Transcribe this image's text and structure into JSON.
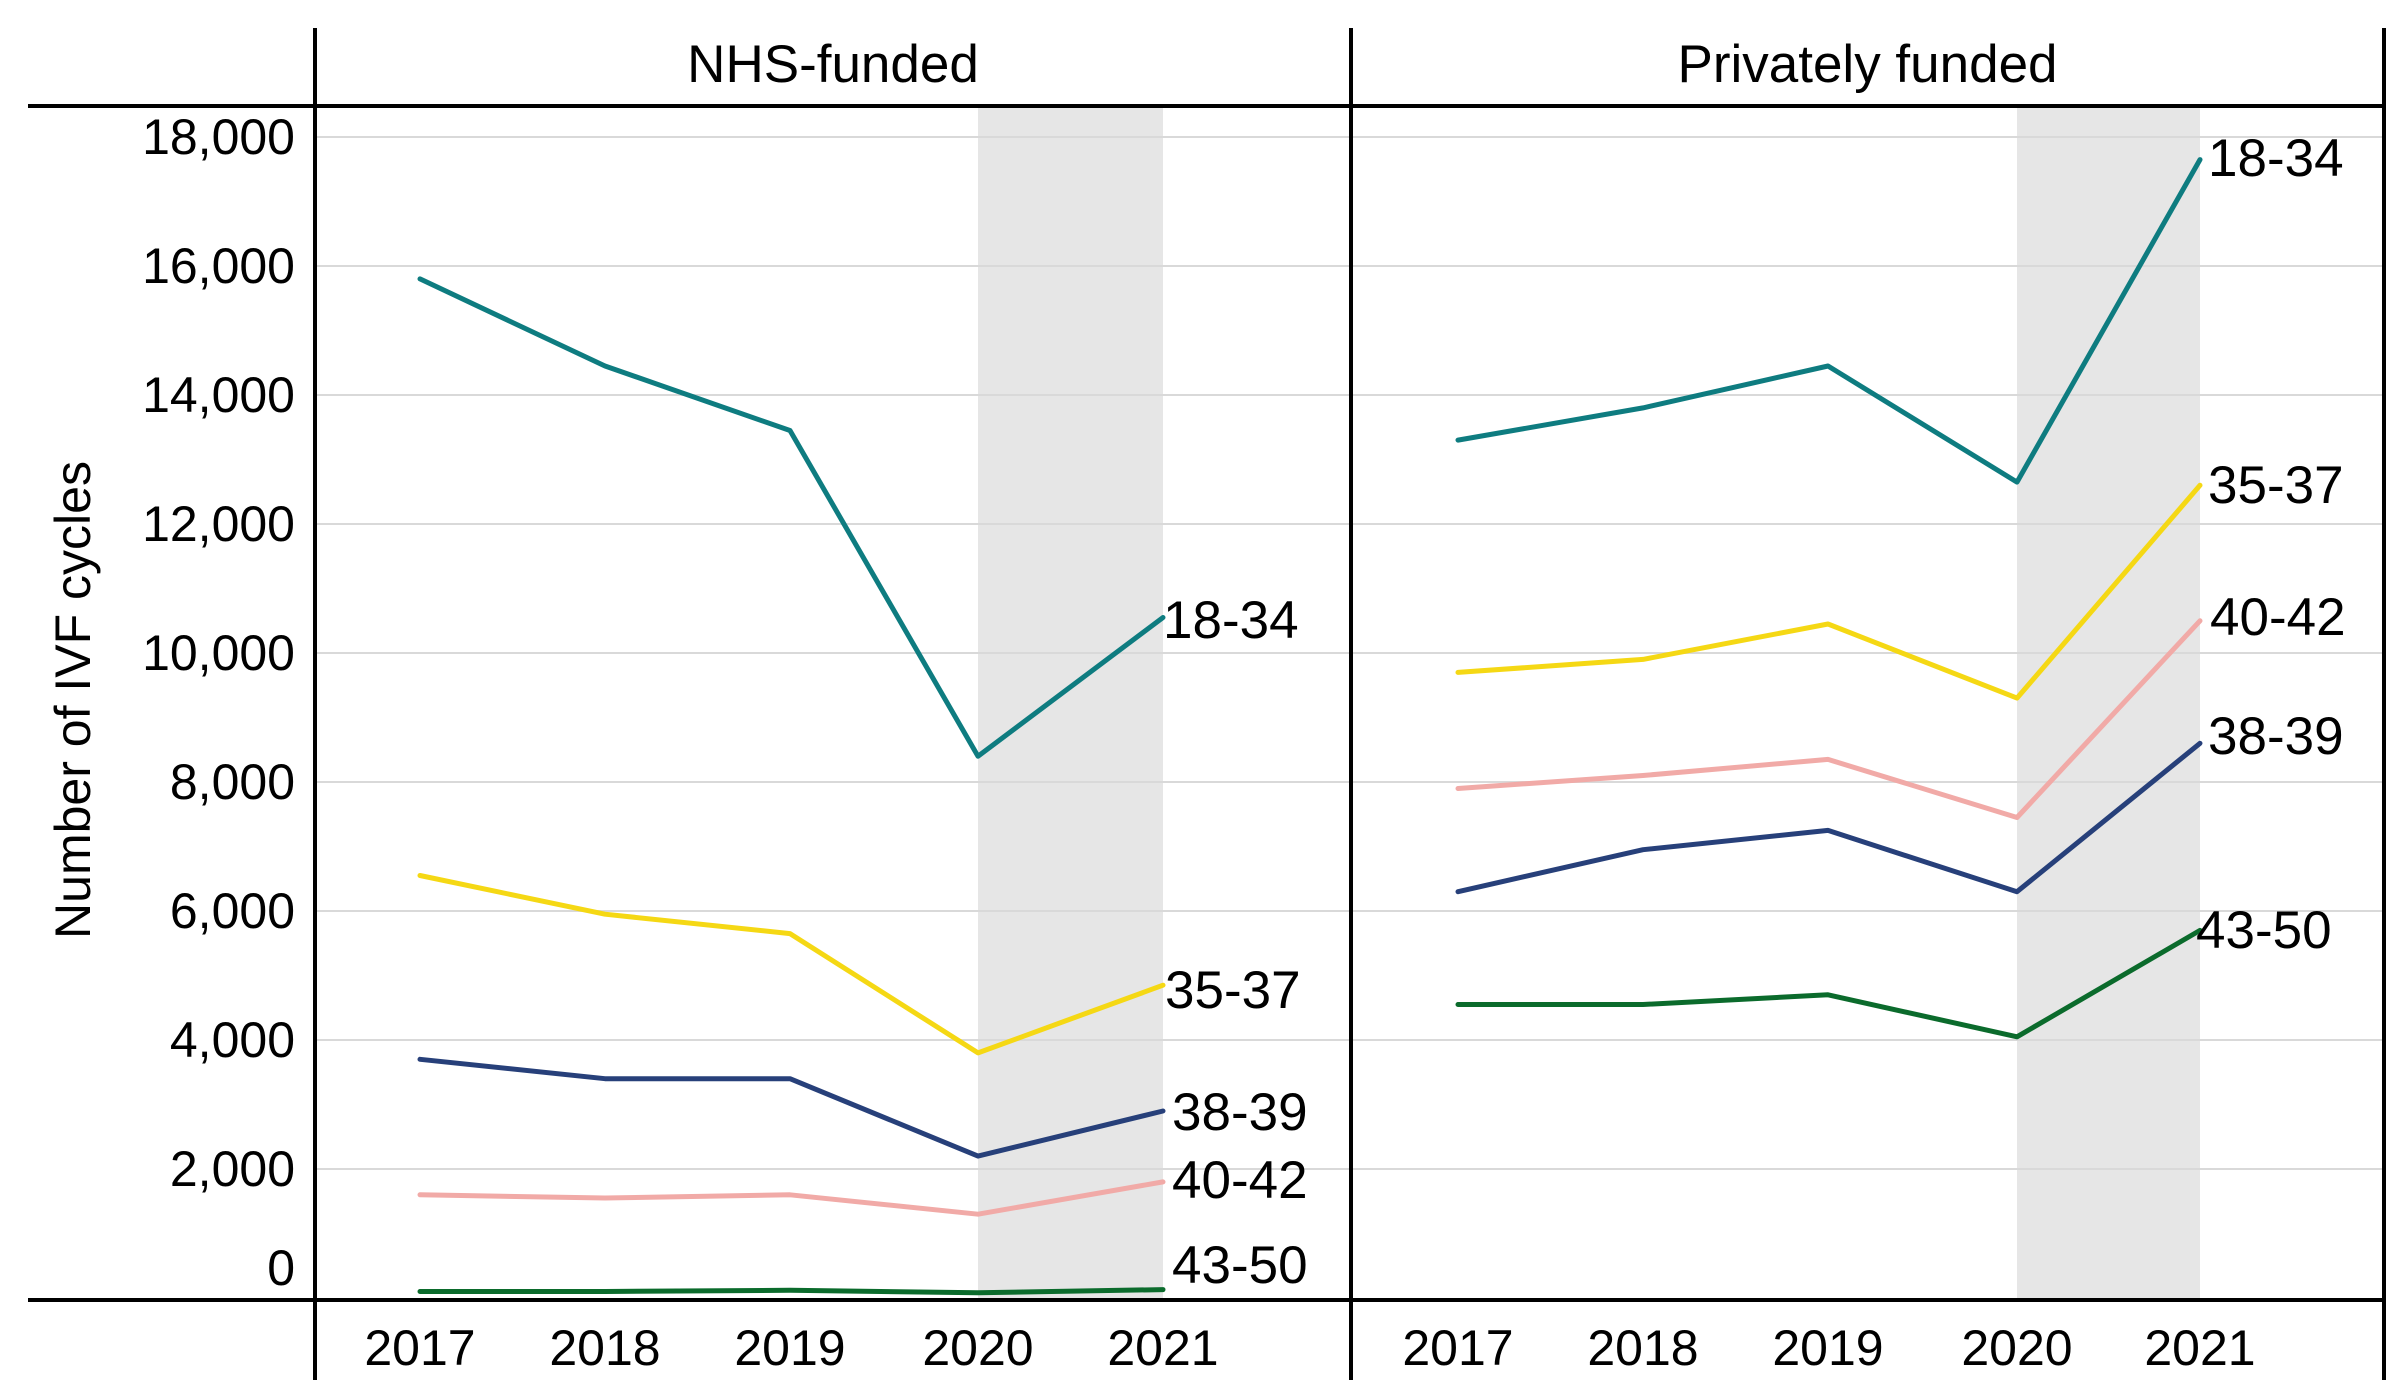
{
  "chart_data": {
    "type": "line",
    "ylabel": "Number of IVF cycles",
    "ylim": [
      0,
      18000
    ],
    "yticks": [
      0,
      2000,
      4000,
      6000,
      8000,
      10000,
      12000,
      14000,
      16000,
      18000
    ],
    "ytick_labels": [
      "0",
      "2,000",
      "4,000",
      "6,000",
      "8,000",
      "10,000",
      "12,000",
      "14,000",
      "16,000",
      "18,000"
    ],
    "grid": true,
    "shaded_period": [
      2020,
      2021
    ],
    "panels": [
      {
        "title": "NHS-funded",
        "x": [
          "2017",
          "2018",
          "2019",
          "2020",
          "2021"
        ],
        "series": [
          {
            "name": "18-34",
            "color": "#0e7c80",
            "values": [
              15800,
              14450,
              13450,
              8400,
              10550
            ]
          },
          {
            "name": "35-37",
            "color": "#f5d814",
            "values": [
              6550,
              5950,
              5650,
              3800,
              4850
            ]
          },
          {
            "name": "38-39",
            "color": "#27407a",
            "values": [
              3700,
              3400,
              3400,
              2200,
              2900
            ]
          },
          {
            "name": "40-42",
            "color": "#f1aaa7",
            "values": [
              1600,
              1550,
              1600,
              1300,
              1800
            ]
          },
          {
            "name": "43-50",
            "color": "#0b6b2c",
            "values": [
              100,
              100,
              120,
              80,
              130
            ]
          }
        ]
      },
      {
        "title": "Privately funded",
        "x": [
          "2017",
          "2018",
          "2019",
          "2020",
          "2021"
        ],
        "series": [
          {
            "name": "18-34",
            "color": "#0e7c80",
            "values": [
              13300,
              13800,
              14450,
              12650,
              17650
            ]
          },
          {
            "name": "35-37",
            "color": "#f5d814",
            "values": [
              9700,
              9900,
              10450,
              9300,
              12600
            ]
          },
          {
            "name": "40-42",
            "color": "#f1aaa7",
            "values": [
              7900,
              8100,
              8350,
              7450,
              10500
            ]
          },
          {
            "name": "38-39",
            "color": "#27407a",
            "values": [
              6300,
              6950,
              7250,
              6300,
              8600
            ]
          },
          {
            "name": "43-50",
            "color": "#0b6b2c",
            "values": [
              4550,
              4550,
              4700,
              4050,
              5700
            ]
          }
        ]
      }
    ]
  }
}
